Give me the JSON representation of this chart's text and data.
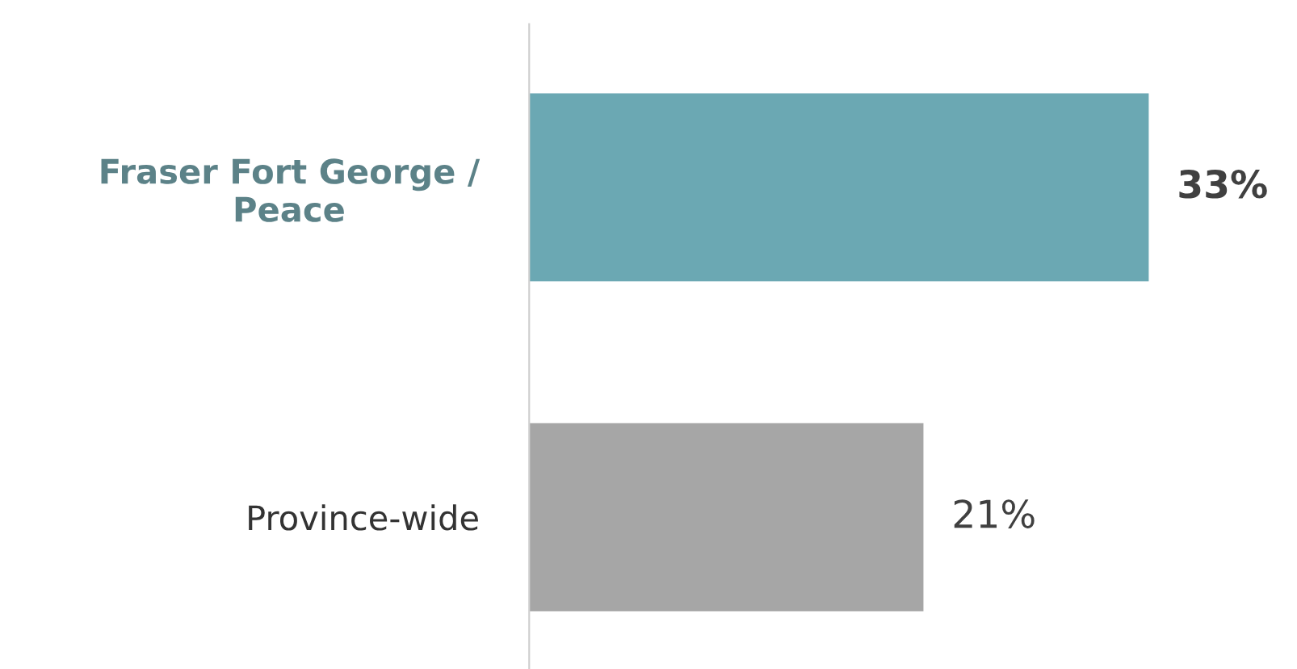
{
  "chart_data": {
    "type": "bar",
    "orientation": "horizontal",
    "categories": [
      "Fraser Fort George / Peace",
      "Province-wide"
    ],
    "values": [
      33,
      21
    ],
    "colors": [
      "#6ba8b3",
      "#a6a6a6"
    ],
    "value_labels": [
      "33%",
      "21%"
    ],
    "tick_labels": "y",
    "grid": false,
    "legend": false
  }
}
